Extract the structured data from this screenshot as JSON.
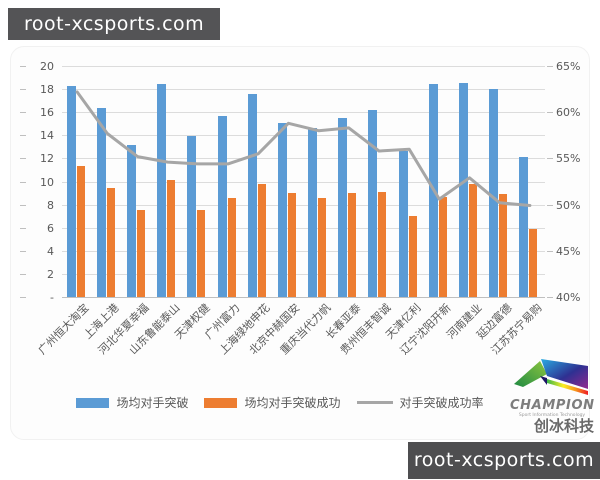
{
  "watermarks": {
    "top_left": "root-xcsports.com",
    "bottom_right": "root-xcsports.com"
  },
  "logo": {
    "brand": "CHAMPION",
    "tagline": "Sport Information Technology",
    "company": "创冰科技"
  },
  "chart_data": {
    "type": "bar",
    "subtype": "combo-bar-line-dual-axis",
    "title": "",
    "categories": [
      "广州恒大淘宝",
      "上海上港",
      "河北华夏幸福",
      "山东鲁能泰山",
      "天津权健",
      "广州富力",
      "上海绿地申花",
      "北京中赫国安",
      "重庆当代力帆",
      "长春亚泰",
      "贵州恒丰智诚",
      "天津亿利",
      "辽宁沈阳开新",
      "河南建业",
      "延边富德",
      "江苏苏宁易购"
    ],
    "series": [
      {
        "name": "场均对手突破",
        "type": "bar",
        "axis": "left",
        "color": "#5b9bd5",
        "values": [
          18.3,
          16.4,
          13.2,
          18.4,
          13.9,
          15.7,
          17.6,
          15.1,
          14.6,
          15.5,
          16.2,
          12.6,
          18.4,
          18.5,
          18.0,
          12.1
        ]
      },
      {
        "name": "场均对手突破成功",
        "type": "bar",
        "axis": "left",
        "color": "#ed7d31",
        "values": [
          11.3,
          9.4,
          7.5,
          10.1,
          7.5,
          8.6,
          9.8,
          9.0,
          8.6,
          9.0,
          9.1,
          7.0,
          8.7,
          9.8,
          8.9,
          5.9
        ]
      },
      {
        "name": "对手突破成功率",
        "type": "line",
        "axis": "right",
        "color": "#a6a6a6",
        "values": [
          62.2,
          57.7,
          55.2,
          54.6,
          54.4,
          54.4,
          55.5,
          58.8,
          58.0,
          58.3,
          55.8,
          56.0,
          50.6,
          52.9,
          50.2,
          49.9
        ]
      }
    ],
    "left_axis": {
      "min": 0,
      "max": 20,
      "step": 2,
      "tick_labels": [
        "20",
        "18",
        "16",
        "14",
        "12",
        "10",
        "8",
        "6",
        "4",
        "2",
        "-"
      ]
    },
    "right_axis": {
      "min": 40,
      "max": 65,
      "step": 5,
      "tick_labels": [
        "65%",
        "60%",
        "55%",
        "50%",
        "45%",
        "40%"
      ]
    },
    "grid": true,
    "legend_position": "bottom",
    "colors": {
      "grid": "#dcdcdc",
      "axis_text": "#595959",
      "line_series": "#a6a6a6",
      "bar1": "#5b9bd5",
      "bar2": "#ed7d31"
    }
  }
}
